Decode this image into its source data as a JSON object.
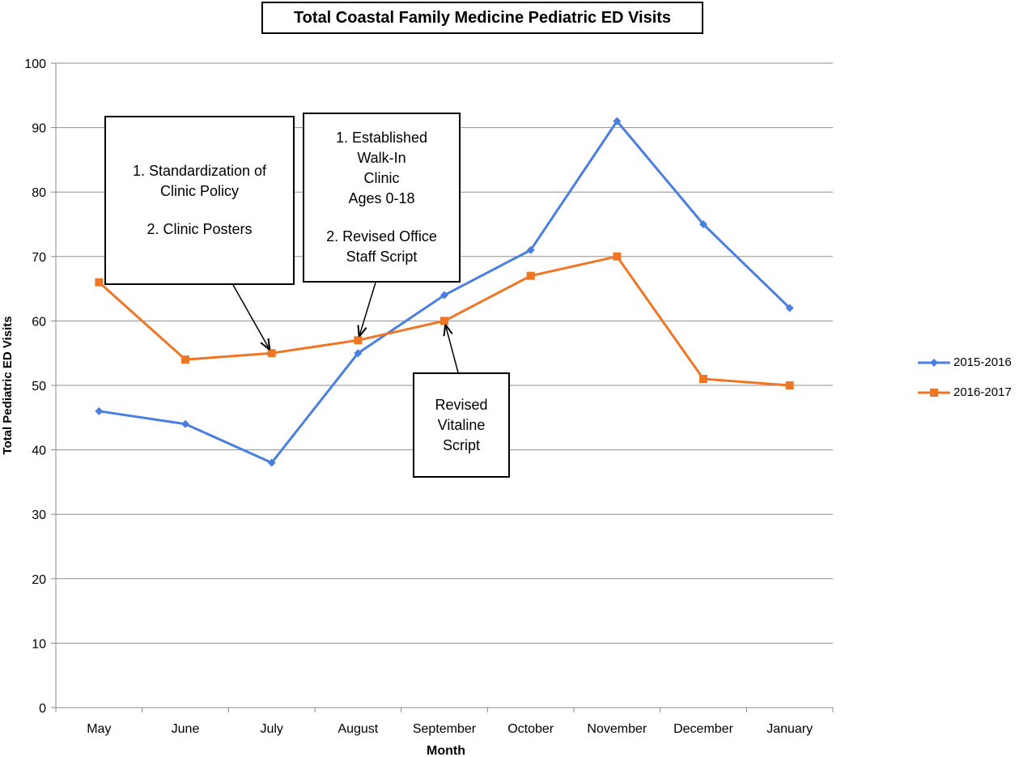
{
  "chart_data": {
    "type": "line",
    "title": "Total Coastal Family Medicine Pediatric ED Visits",
    "xlabel": "Month",
    "ylabel": "Total Pediatric ED Visits",
    "categories": [
      "May",
      "June",
      "July",
      "August",
      "September",
      "October",
      "November",
      "December",
      "January"
    ],
    "ylim": [
      0,
      100
    ],
    "yticks": [
      "0",
      "10",
      "20",
      "30",
      "40",
      "50",
      "60",
      "70",
      "80",
      "90",
      "100"
    ],
    "grid": true,
    "legend_position": "right",
    "series": [
      {
        "name": "2015-2016",
        "color": "#4a7fe0",
        "marker": "diamond",
        "values": [
          46,
          44,
          38,
          55,
          64,
          71,
          91,
          75,
          62
        ]
      },
      {
        "name": "2016-2017",
        "color": "#ee7625",
        "marker": "square",
        "values": [
          66,
          54,
          55,
          57,
          60,
          67,
          70,
          51,
          50
        ]
      }
    ],
    "annotations": [
      {
        "lines": [
          "1. Standardization of",
          "Clinic Policy",
          "",
          "2. Clinic Posters"
        ],
        "points_to": {
          "series": 1,
          "index": 2
        }
      },
      {
        "lines": [
          "1. Established",
          "Walk-In",
          "Clinic",
          "Ages 0-18",
          "",
          "2. Revised Office",
          "Staff Script"
        ],
        "points_to": {
          "series": 1,
          "index": 3
        }
      },
      {
        "lines": [
          "Revised",
          "Vitaline",
          "Script"
        ],
        "points_to": {
          "series": 1,
          "index": 4
        }
      }
    ]
  }
}
